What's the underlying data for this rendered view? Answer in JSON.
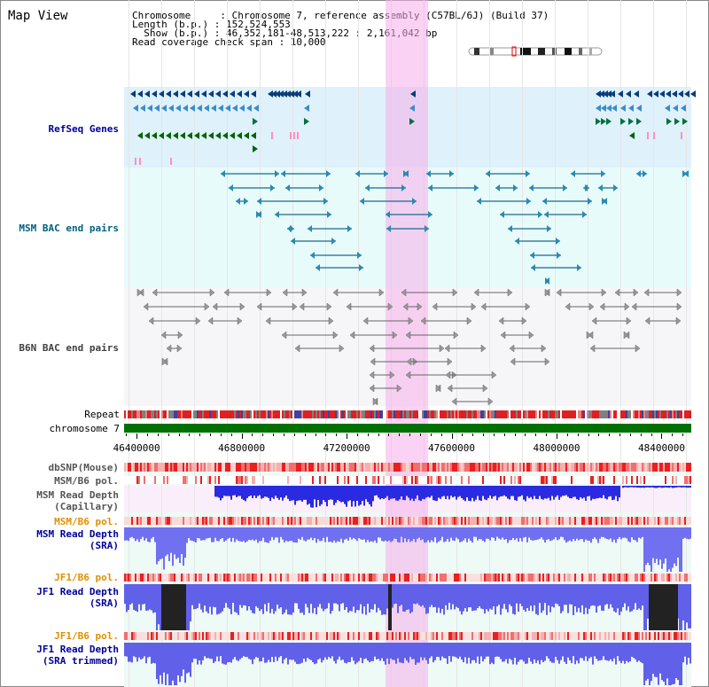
{
  "title": "Map View",
  "info": {
    "line1": "Chromosome     : Chromosome 7, reference assembly (C57BL/6J) (Build 37)",
    "line2": "Length (b.p.) : 152,524,553",
    "line3": "  Show (b.p.) : 46,352,181-48,513,222 : 2,161,042 bp",
    "line4": "Read coverage check span : 10,000"
  },
  "tracks": {
    "refseq": "RefSeq Genes",
    "msm_bac": "MSM BAC end pairs",
    "b6n_bac": "B6N BAC end pairs",
    "repeat": "Repeat",
    "chromosome": "chromosome 7",
    "dbsnp": "dbSNP(Mouse)",
    "msm_b6_pol_1": "MSM/B6 pol.",
    "msm_depth_cap_1": "MSM Read Depth",
    "msm_depth_cap_2": "(Capillary)",
    "msm_b6_pol_2": "MSM/B6 pol.",
    "msm_depth_sra_1": "MSM Read Depth",
    "msm_depth_sra_2": "(SRA)",
    "jf1_b6_pol_1": "JF1/B6 pol.",
    "jf1_depth_sra_1": "JF1 Read Depth",
    "jf1_depth_sra_2": "(SRA)",
    "jf1_b6_pol_2": "JF1/B6 pol.",
    "jf1_depth_trim_1": "JF1 Read Depth",
    "jf1_depth_trim_2": "(SRA trimmed)"
  },
  "axis": {
    "ticks": [
      "46400000",
      "46800000",
      "47200000",
      "47600000",
      "48000000",
      "48400000"
    ],
    "tick_values": [
      46400000,
      46800000,
      47200000,
      47600000,
      48000000,
      48400000
    ],
    "range": [
      46352181,
      48513222
    ]
  },
  "colors": {
    "highlight": "#f5afeb",
    "refseq_bg": "#dff1fb",
    "msm_bg": "#e6fbfb",
    "b6n_bg": "#f6f6f8",
    "chromosome": "#007000",
    "label_blue": "#000099",
    "label_teal": "#005f7f",
    "label_orange": "#e09000",
    "label_gray": "#404040"
  }
}
